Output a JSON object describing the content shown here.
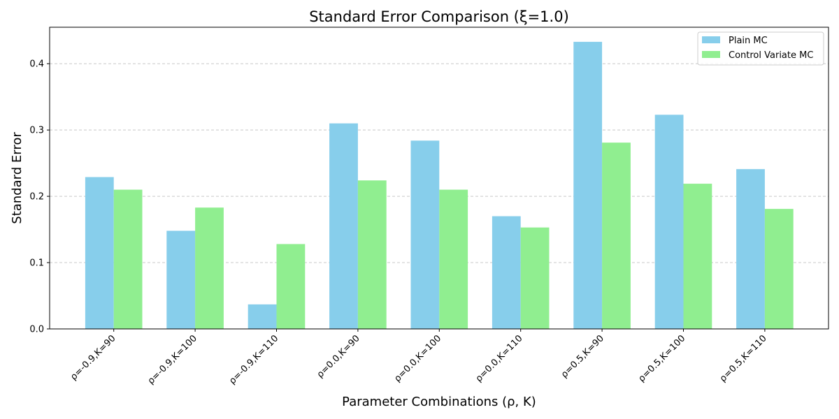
{
  "chart_data": {
    "type": "bar",
    "title": "Standard Error Comparison (ξ=1.0)",
    "xlabel": "Parameter Combinations (ρ, K)",
    "ylabel": "Standard Error",
    "ylim": [
      0,
      0.455
    ],
    "yticks": [
      0.0,
      0.1,
      0.2,
      0.3,
      0.4
    ],
    "ytick_labels": [
      "0.0",
      "0.1",
      "0.2",
      "0.3",
      "0.4"
    ],
    "grid": "y-dashed",
    "legend_position": "top-right",
    "categories": [
      "ρ=-0.9,K=90",
      "ρ=-0.9,K=100",
      "ρ=-0.9,K=110",
      "ρ=0.0,K=90",
      "ρ=0.0,K=100",
      "ρ=0.0,K=110",
      "ρ=0.5,K=90",
      "ρ=0.5,K=100",
      "ρ=0.5,K=110"
    ],
    "series": [
      {
        "name": "Plain MC",
        "color": "#87ceeb",
        "values": [
          0.229,
          0.148,
          0.037,
          0.31,
          0.284,
          0.17,
          0.433,
          0.323,
          0.241
        ]
      },
      {
        "name": "Control Variate MC",
        "color": "#90ee90",
        "values": [
          0.21,
          0.183,
          0.128,
          0.224,
          0.21,
          0.153,
          0.281,
          0.219,
          0.181
        ]
      }
    ]
  }
}
